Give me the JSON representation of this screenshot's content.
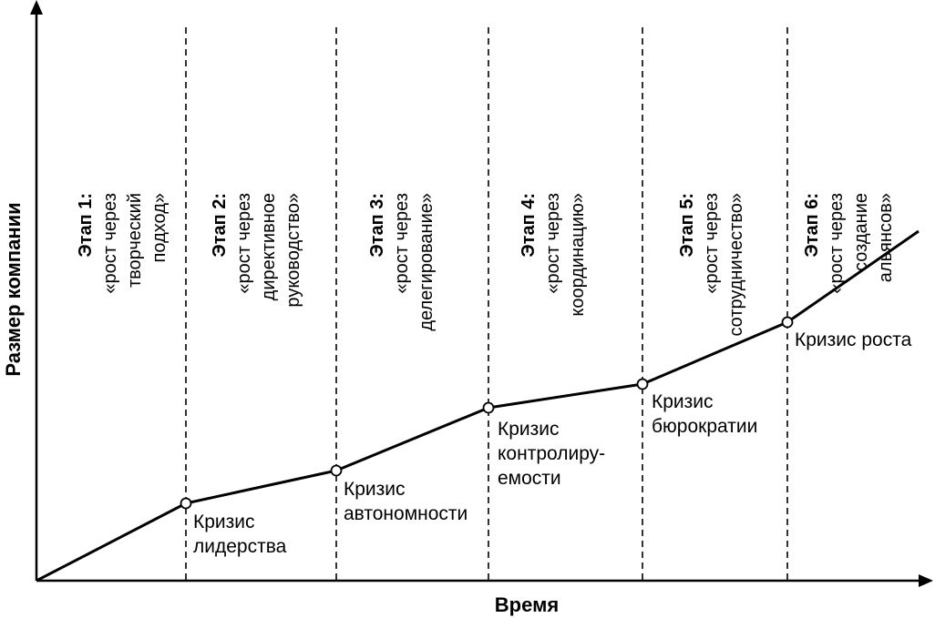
{
  "axes": {
    "x_label": "Время",
    "y_label": "Размер компании"
  },
  "stages": [
    {
      "title": "Этап 1:",
      "lines": [
        "«рост через",
        "творческий",
        "подход»"
      ]
    },
    {
      "title": "Этап 2:",
      "lines": [
        "«рост через",
        "директивное",
        "руководство»"
      ]
    },
    {
      "title": "Этап 3:",
      "lines": [
        "«рост через",
        "делегирование»"
      ]
    },
    {
      "title": "Этап 4:",
      "lines": [
        "«рост через",
        "координацию»"
      ]
    },
    {
      "title": "Этап 5:",
      "lines": [
        "«рост через",
        "сотрудничество»"
      ]
    },
    {
      "title": "Этап 6:",
      "lines": [
        "«рост через",
        "создание",
        "альянсов»"
      ]
    }
  ],
  "crises": [
    {
      "lines": [
        "Кризис",
        "лидерства"
      ]
    },
    {
      "lines": [
        "Кризис",
        "автономности"
      ]
    },
    {
      "lines": [
        "Кризис",
        "контролиру-",
        "емости"
      ]
    },
    {
      "lines": [
        "Кризис",
        "бюрократии"
      ]
    },
    {
      "lines": [
        "Кризис роста"
      ]
    }
  ],
  "colors": {
    "line": "#000000",
    "marker_fill": "#ffffff",
    "background": "#ffffff"
  }
}
